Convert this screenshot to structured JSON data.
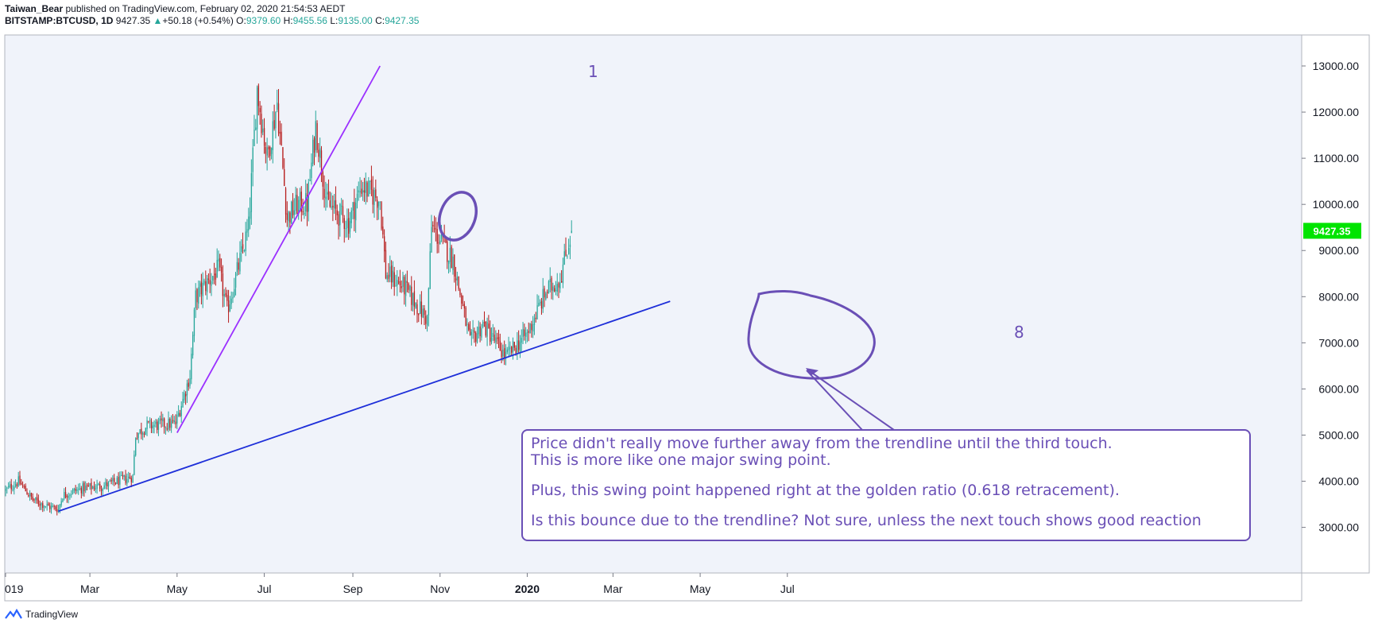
{
  "header": {
    "author": "Taiwan_Bear",
    "published_text": "published on TradingView.com, February 02, 2020 21:54:53 AEDT",
    "symbol": "BITSTAMP:BTCUSD, 1D",
    "last": "9427.35",
    "change": "+50.18 (+0.54%)",
    "o_label": "O:",
    "o_value": "9379.60",
    "h_label": "H:",
    "h_value": "9455.56",
    "l_label": "L:",
    "l_value": "9135.00",
    "c_label": "C:",
    "c_value": "9427.35"
  },
  "footer": {
    "brand": "TradingView"
  },
  "annotations": {
    "label_1": "1",
    "label_8": "8",
    "note_line1": "Price didn't really move further away from the trendline until the third touch.",
    "note_line2": "This is more like one major swing point.",
    "note_line3": "Plus, this swing point happened right at the golden ratio (0.618 retracement).",
    "note_line4": "Is this bounce due to the trendline? Not sure, unless the next touch shows good reaction"
  },
  "colors": {
    "background": "#f0f3fa",
    "up_candle": "#26a69a",
    "down_candle": "#b71c1c",
    "trendline_1": "#9b30ff",
    "trendline_8": "#1e2fd9",
    "annotation": "#6a4fb6",
    "price_tag": "#00e400"
  },
  "chart_data": {
    "type": "candlestick",
    "symbol": "BITSTAMP:BTCUSD",
    "interval": "1D",
    "ylim": [
      2000,
      13700
    ],
    "y_ticks": [
      "13000.00",
      "12000.00",
      "11000.00",
      "10000.00",
      "9000.00",
      "8000.00",
      "7000.00",
      "6000.00",
      "5000.00",
      "4000.00",
      "3000.00"
    ],
    "x_ticks": [
      "019",
      "Mar",
      "May",
      "Jul",
      "Sep",
      "Nov",
      "2020",
      "Mar",
      "May",
      "Jul"
    ],
    "last_price_label": "9427.35",
    "close_path": [
      [
        "2019-01-01",
        3800
      ],
      [
        "2019-01-10",
        4000
      ],
      [
        "2019-01-20",
        3600
      ],
      [
        "2019-01-31",
        3450
      ],
      [
        "2019-02-07",
        3400
      ],
      [
        "2019-02-10",
        3700
      ],
      [
        "2019-02-24",
        3850
      ],
      [
        "2019-03-10",
        3900
      ],
      [
        "2019-03-31",
        4100
      ],
      [
        "2019-04-02",
        5000
      ],
      [
        "2019-04-10",
        5200
      ],
      [
        "2019-04-30",
        5250
      ],
      [
        "2019-05-10",
        6300
      ],
      [
        "2019-05-14",
        8000
      ],
      [
        "2019-05-30",
        8600
      ],
      [
        "2019-06-05",
        7700
      ],
      [
        "2019-06-20",
        9500
      ],
      [
        "2019-06-26",
        12500
      ],
      [
        "2019-07-03",
        11000
      ],
      [
        "2019-07-10",
        12200
      ],
      [
        "2019-07-17",
        9700
      ],
      [
        "2019-07-24",
        10000
      ],
      [
        "2019-07-31",
        10000
      ],
      [
        "2019-08-06",
        11700
      ],
      [
        "2019-08-14",
        10000
      ],
      [
        "2019-08-29",
        9600
      ],
      [
        "2019-09-07",
        10400
      ],
      [
        "2019-09-20",
        10100
      ],
      [
        "2019-09-24",
        8500
      ],
      [
        "2019-10-07",
        8200
      ],
      [
        "2019-10-23",
        7500
      ],
      [
        "2019-10-26",
        9500
      ],
      [
        "2019-11-10",
        8800
      ],
      [
        "2019-11-22",
        7000
      ],
      [
        "2019-12-01",
        7400
      ],
      [
        "2019-12-17",
        6700
      ],
      [
        "2020-01-01",
        7200
      ],
      [
        "2020-01-14",
        8100
      ],
      [
        "2020-01-24",
        8400
      ],
      [
        "2020-02-01",
        9427
      ]
    ],
    "trendlines": [
      {
        "label": "1",
        "from": [
          "2019-05-01",
          5050
        ],
        "to": [
          "2019-09-20",
          13000
        ]
      },
      {
        "label": "8",
        "from": [
          "2019-02-07",
          3350
        ],
        "to": [
          "2020-04-10",
          7900
        ]
      }
    ]
  }
}
